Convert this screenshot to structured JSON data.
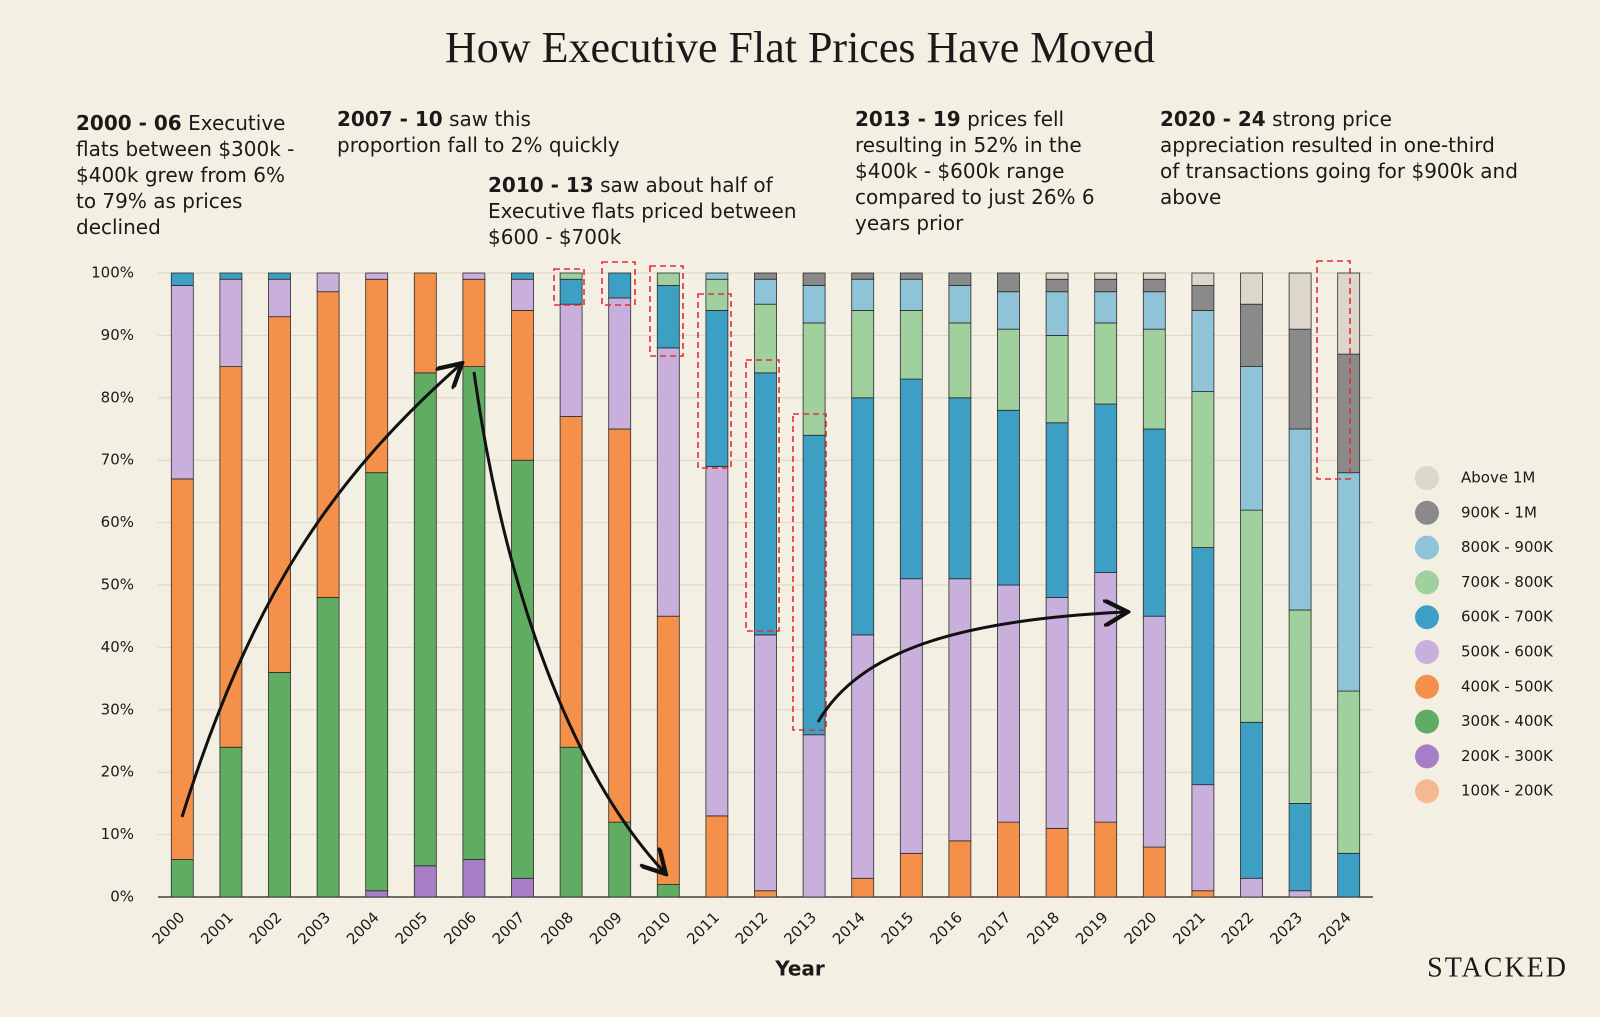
{
  "chart_data": {
    "type": "stacked_bar",
    "title": "How Executive Flat Prices Have Moved",
    "x_label": "Year",
    "brand": "STACKED",
    "annotations": [
      {
        "bold": "2000 - 06",
        "text": "Executive flats between $300k - $400k grew from 6% to 79% as prices declined"
      },
      {
        "bold": "2007 - 10",
        "text": "saw this proportion fall to 2% quickly"
      },
      {
        "bold": "2010 - 13",
        "text": "saw about half of Executive flats priced between $600 - $700k"
      },
      {
        "bold": "2013 - 19",
        "text": "prices fell resulting in 52% in the $400k - $600k range compared to just 26% 6 years prior"
      },
      {
        "bold": "2020 - 24",
        "text": "strong price appreciation resulted in one-third of transactions going for $900k and above"
      }
    ],
    "categories": [
      "2000",
      "2001",
      "2002",
      "2003",
      "2004",
      "2005",
      "2006",
      "2007",
      "2008",
      "2009",
      "2010",
      "2011",
      "2012",
      "2013",
      "2014",
      "2015",
      "2016",
      "2017",
      "2018",
      "2019",
      "2020",
      "2021",
      "2022",
      "2023",
      "2024"
    ],
    "ylim": [
      0,
      100
    ],
    "yticks": [
      {
        "value": 0,
        "label": "0%"
      },
      {
        "value": 10,
        "label": "10%"
      },
      {
        "value": 20,
        "label": "20%"
      },
      {
        "value": 30,
        "label": "30%"
      },
      {
        "value": 40,
        "label": "40%"
      },
      {
        "value": 50,
        "label": "50%"
      },
      {
        "value": 60,
        "label": "60%"
      },
      {
        "value": 70,
        "label": "70%"
      },
      {
        "value": 80,
        "label": "80%"
      },
      {
        "value": 90,
        "label": "90%"
      },
      {
        "value": 100,
        "label": "100%"
      }
    ],
    "series": [
      {
        "name": "100K - 200K",
        "color": "#f6b890",
        "values": [
          0,
          0,
          0,
          0,
          0,
          0,
          0,
          0,
          0,
          0,
          0,
          0,
          0,
          0,
          0,
          0,
          0,
          0,
          0,
          0,
          0,
          0,
          0,
          0,
          0
        ]
      },
      {
        "name": "200K - 300K",
        "color": "#a77fc6",
        "values": [
          0,
          0,
          0,
          0,
          1,
          5,
          6,
          3,
          0,
          0,
          0,
          0,
          0,
          0,
          0,
          0,
          0,
          0,
          0,
          0,
          0,
          0,
          0,
          0,
          0
        ]
      },
      {
        "name": "300K - 400K",
        "color": "#5fac62",
        "values": [
          6,
          24,
          36,
          48,
          67,
          79,
          79,
          67,
          24,
          12,
          2,
          0,
          0,
          0,
          0,
          0,
          0,
          0,
          0,
          0,
          0,
          0,
          0,
          0,
          0
        ]
      },
      {
        "name": "400K - 500K",
        "color": "#f4904a",
        "values": [
          61,
          61,
          57,
          49,
          31,
          16,
          14,
          24,
          53,
          63,
          43,
          13,
          1,
          0,
          3,
          7,
          9,
          12,
          11,
          12,
          8,
          1,
          0,
          0,
          0
        ]
      },
      {
        "name": "500K - 600K",
        "color": "#c9b0dc",
        "values": [
          31,
          14,
          6,
          3,
          1,
          0,
          1,
          5,
          18,
          21,
          43,
          56,
          41,
          26,
          39,
          44,
          42,
          38,
          37,
          40,
          37,
          17,
          3,
          1,
          0
        ]
      },
      {
        "name": "600K - 700K",
        "color": "#3e9fc4",
        "values": [
          2,
          1,
          1,
          0,
          0,
          0,
          0,
          1,
          4,
          4,
          10,
          25,
          42,
          48,
          38,
          32,
          29,
          28,
          28,
          27,
          30,
          38,
          25,
          14,
          7
        ]
      },
      {
        "name": "700K - 800K",
        "color": "#9fd09e",
        "values": [
          0,
          0,
          0,
          0,
          0,
          0,
          0,
          0,
          1,
          0,
          2,
          5,
          11,
          18,
          14,
          11,
          12,
          13,
          14,
          13,
          16,
          25,
          34,
          31,
          26
        ]
      },
      {
        "name": "800K - 900K",
        "color": "#8fc3d8",
        "values": [
          0,
          0,
          0,
          0,
          0,
          0,
          0,
          0,
          0,
          0,
          0,
          1,
          4,
          6,
          5,
          5,
          6,
          6,
          7,
          5,
          6,
          13,
          23,
          29,
          35
        ]
      },
      {
        "name": "900K - 1M",
        "color": "#8a8a8a",
        "values": [
          0,
          0,
          0,
          0,
          0,
          0,
          0,
          0,
          0,
          0,
          0,
          0,
          1,
          2,
          1,
          1,
          2,
          3,
          2,
          2,
          2,
          4,
          10,
          16,
          19
        ]
      },
      {
        "name": "Above 1M",
        "color": "#dcd6cb",
        "values": [
          0,
          0,
          0,
          0,
          0,
          0,
          0,
          0,
          0,
          0,
          0,
          0,
          0,
          0,
          0,
          0,
          0,
          0,
          1,
          1,
          1,
          2,
          5,
          9,
          13
        ]
      }
    ],
    "grid": true,
    "legend": "right"
  }
}
